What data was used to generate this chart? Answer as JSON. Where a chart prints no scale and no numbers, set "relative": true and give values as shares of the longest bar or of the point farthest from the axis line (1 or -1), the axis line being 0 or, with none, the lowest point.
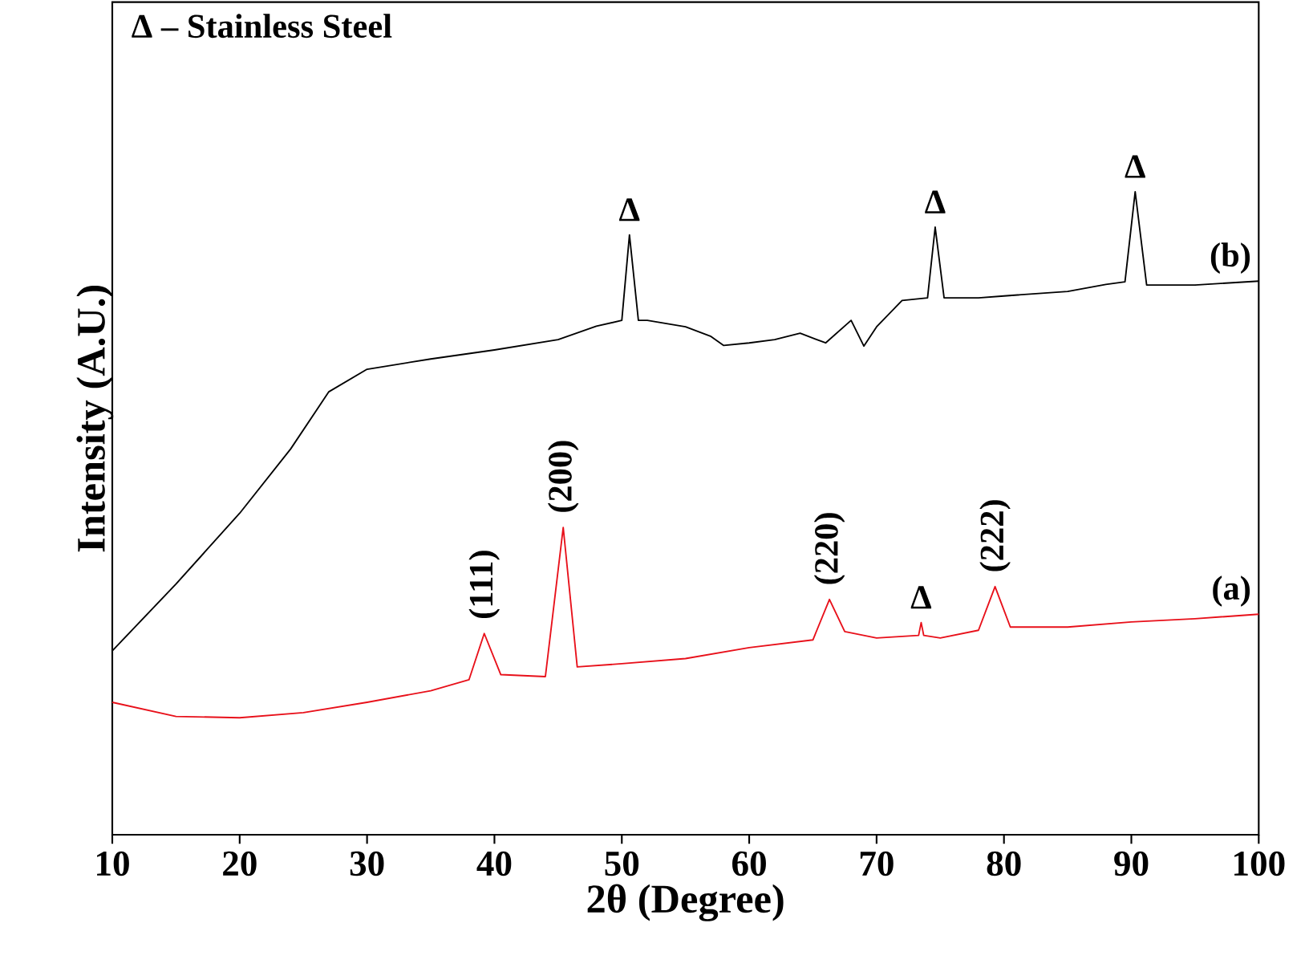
{
  "chart_data": {
    "type": "line",
    "relative": true,
    "xlabel": "2θ (Degree)",
    "ylabel": "Intensity (A.U.)",
    "xlim": [
      10,
      100
    ],
    "xticks": [
      10,
      20,
      30,
      40,
      50,
      60,
      70,
      80,
      90,
      100
    ],
    "series": [
      {
        "name": "(b)",
        "color": "#000000",
        "x": [
          10,
          15,
          20,
          24,
          27,
          30,
          35,
          40,
          45,
          48,
          50,
          50.6,
          51.3,
          52,
          55,
          57,
          58,
          60,
          62,
          64,
          66,
          68,
          69,
          70,
          72,
          74,
          74.6,
          75.3,
          78,
          80,
          85,
          88,
          89.5,
          90.3,
          91.2,
          95,
          100
        ],
        "values": [
          0.286,
          0.39,
          0.5,
          0.6,
          0.689,
          0.724,
          0.74,
          0.754,
          0.77,
          0.791,
          0.8,
          0.933,
          0.8,
          0.8,
          0.79,
          0.775,
          0.761,
          0.765,
          0.77,
          0.78,
          0.765,
          0.8,
          0.76,
          0.79,
          0.831,
          0.835,
          0.945,
          0.835,
          0.835,
          0.838,
          0.845,
          0.856,
          0.86,
          1,
          0.855,
          0.855,
          0.861
        ]
      },
      {
        "name": "(a)",
        "color": "#e8101a",
        "x": [
          10,
          15,
          20,
          25,
          30,
          35,
          38,
          39.2,
          40.5,
          44,
          45.4,
          46.5,
          50,
          55,
          60,
          65,
          66.3,
          67.5,
          70,
          73.3,
          73.5,
          73.7,
          75,
          78,
          79.3,
          80.5,
          85,
          90,
          95,
          100
        ],
        "values": [
          0.206,
          0.184,
          0.182,
          0.19,
          0.206,
          0.224,
          0.241,
          0.313,
          0.249,
          0.246,
          0.478,
          0.261,
          0.266,
          0.274,
          0.291,
          0.303,
          0.366,
          0.316,
          0.306,
          0.31,
          0.33,
          0.31,
          0.306,
          0.318,
          0.386,
          0.323,
          0.323,
          0.331,
          0.336,
          0.343
        ]
      }
    ],
    "annotations": [
      "Δ – Stainless Steel",
      {
        "text": "Δ",
        "x": 50.6,
        "y": 0.933
      },
      {
        "text": "Δ",
        "x": 74.6,
        "y": 0.945
      },
      {
        "text": "Δ",
        "x": 90.3,
        "y": 1
      },
      {
        "text": "(111)",
        "x": 39.2,
        "y": 0.313
      },
      {
        "text": "(200)",
        "x": 45.4,
        "y": 0.478
      },
      {
        "text": "(220)",
        "x": 66.3,
        "y": 0.366
      },
      {
        "text": "(222)",
        "x": 79.3,
        "y": 0.386
      },
      {
        "text": "Δ",
        "x": 73.5,
        "y": 0.33
      }
    ]
  }
}
